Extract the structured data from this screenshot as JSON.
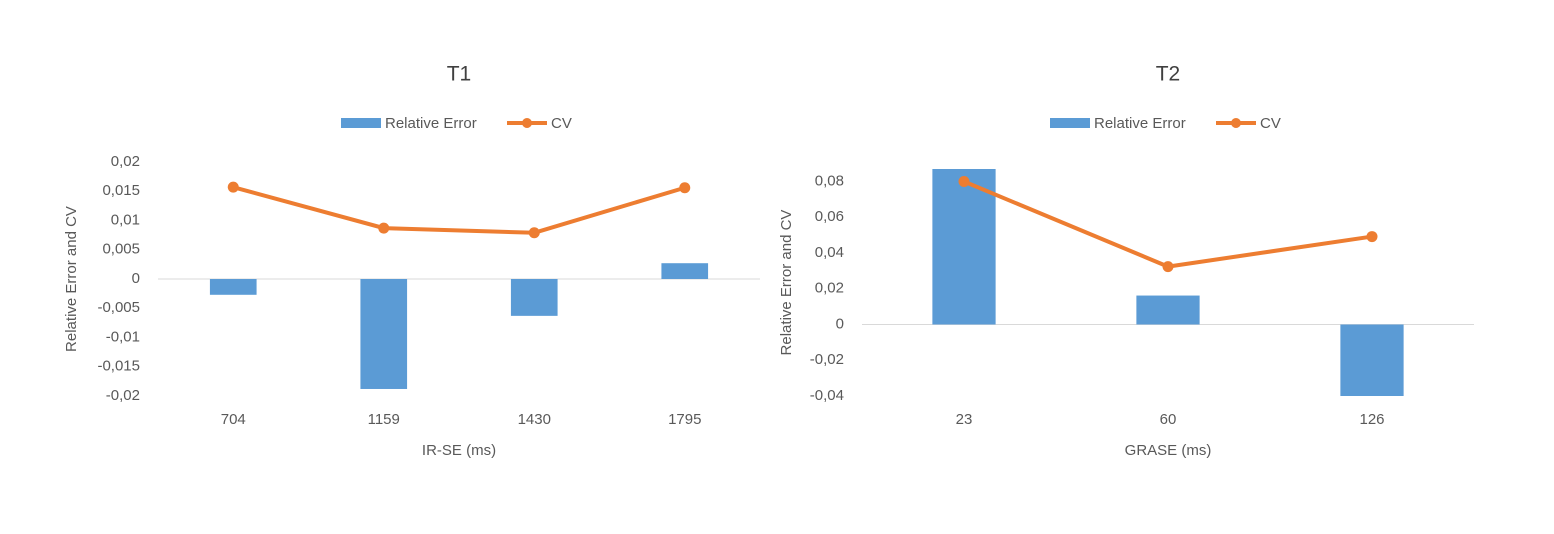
{
  "chart_data": [
    {
      "type": "bar_line",
      "title": "T1",
      "x_label": "IR-SE (ms)",
      "y_label": "Relative Error and CV",
      "categories": [
        "704",
        "1159",
        "1430",
        "1795"
      ],
      "series": [
        {
          "name": "Relative Error",
          "type": "bar",
          "color": "#5b9bd5",
          "values": [
            -0.0027,
            -0.0188,
            -0.0063,
            0.0027
          ]
        },
        {
          "name": "CV",
          "type": "line",
          "color": "#ed7d31",
          "values": [
            0.0157,
            0.0087,
            0.0079,
            0.0156
          ]
        }
      ],
      "ylim": [
        -0.02,
        0.02
      ],
      "yticks": [
        {
          "value": -0.02,
          "label": "-0,02"
        },
        {
          "value": -0.015,
          "label": "-0,015"
        },
        {
          "value": -0.01,
          "label": "-0,01"
        },
        {
          "value": -0.005,
          "label": "-0,005"
        },
        0,
        {
          "value": 0.005,
          "label": "0,005"
        },
        {
          "value": 0.01,
          "label": "0,01"
        },
        {
          "value": 0.015,
          "label": "0,015"
        },
        {
          "value": 0.02,
          "label": "0,02"
        }
      ],
      "legend": "top"
    },
    {
      "type": "bar_line",
      "title": "T2",
      "x_label": "GRASE (ms)",
      "y_label": "Relative Error and CV",
      "categories": [
        "23",
        "60",
        "126"
      ],
      "series": [
        {
          "name": "Relative Error",
          "type": "bar",
          "color": "#5b9bd5",
          "values": [
            0.087,
            0.0162,
            -0.04
          ]
        },
        {
          "name": "CV",
          "type": "line",
          "color": "#ed7d31",
          "values": [
            0.08,
            0.0324,
            0.0492
          ]
        }
      ],
      "ylim": [
        -0.04,
        0.087
      ],
      "yticks": [
        {
          "value": -0.04,
          "label": "-0,04"
        },
        {
          "value": -0.02,
          "label": "-0,02"
        },
        0,
        {
          "value": 0.02,
          "label": "0,02"
        },
        {
          "value": 0.04,
          "label": "0,04"
        },
        {
          "value": 0.06,
          "label": "0,06"
        },
        {
          "value": 0.08,
          "label": "0,08"
        }
      ],
      "legend": "top"
    }
  ]
}
